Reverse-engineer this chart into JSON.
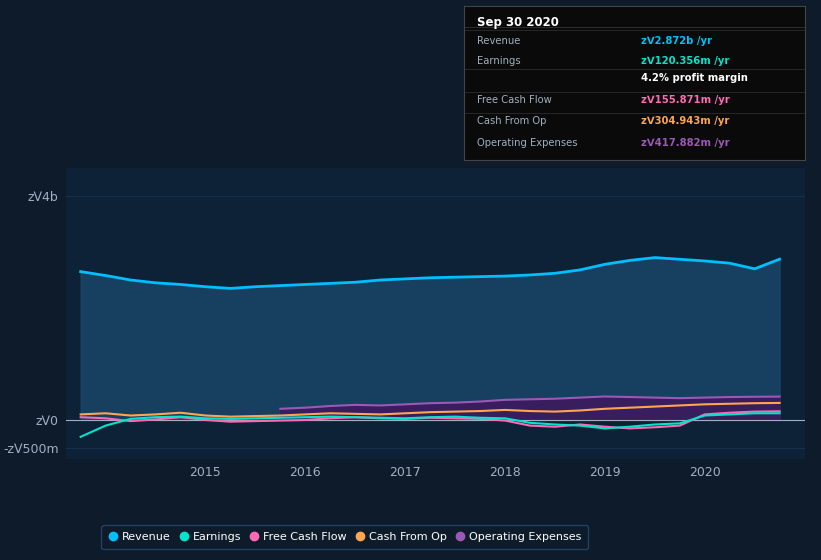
{
  "bg_color": "#0d1b2a",
  "plot_bg_color": "#0d2137",
  "grid_color": "#1e3a5f",
  "text_color": "#a0b0c0",
  "title_color": "#ffffff",
  "ylim": [
    -700000000,
    4500000000
  ],
  "yticks": [
    -500000000,
    0,
    4000000000
  ],
  "ytick_labels": [
    "-zᐯ500m",
    "zᐯ0",
    "zᐯ4b"
  ],
  "x_ticks": [
    2015,
    2016,
    2017,
    2018,
    2019,
    2020
  ],
  "series": {
    "Revenue": {
      "color": "#00bfff",
      "fill_color": "#1a4a6e"
    },
    "Earnings": {
      "color": "#00e5cc"
    },
    "Free Cash Flow": {
      "color": "#ff69b4"
    },
    "Cash From Op": {
      "color": "#ffa550"
    },
    "Operating Expenses": {
      "color": "#9b59b6",
      "fill_color": "#3d1a5e"
    }
  },
  "revenue_x": [
    2013.75,
    2014.0,
    2014.25,
    2014.5,
    2014.75,
    2015.0,
    2015.25,
    2015.5,
    2015.75,
    2016.0,
    2016.25,
    2016.5,
    2016.75,
    2017.0,
    2017.25,
    2017.5,
    2017.75,
    2018.0,
    2018.25,
    2018.5,
    2018.75,
    2019.0,
    2019.25,
    2019.5,
    2019.75,
    2020.0,
    2020.25,
    2020.5,
    2020.75
  ],
  "revenue_y": [
    2650000000,
    2580000000,
    2500000000,
    2450000000,
    2420000000,
    2380000000,
    2350000000,
    2380000000,
    2400000000,
    2420000000,
    2440000000,
    2460000000,
    2500000000,
    2520000000,
    2540000000,
    2550000000,
    2560000000,
    2570000000,
    2590000000,
    2620000000,
    2680000000,
    2780000000,
    2850000000,
    2900000000,
    2870000000,
    2840000000,
    2800000000,
    2700000000,
    2872000000
  ],
  "earnings_x": [
    2013.75,
    2014.0,
    2014.25,
    2014.5,
    2014.75,
    2015.0,
    2015.25,
    2015.5,
    2015.75,
    2016.0,
    2016.25,
    2016.5,
    2016.75,
    2017.0,
    2017.25,
    2017.5,
    2017.75,
    2018.0,
    2018.25,
    2018.5,
    2018.75,
    2019.0,
    2019.25,
    2019.5,
    2019.75,
    2020.0,
    2020.25,
    2020.5,
    2020.75
  ],
  "earnings_y": [
    -300000000,
    -100000000,
    20000000,
    50000000,
    60000000,
    30000000,
    20000000,
    30000000,
    40000000,
    50000000,
    60000000,
    50000000,
    40000000,
    30000000,
    50000000,
    60000000,
    40000000,
    30000000,
    -50000000,
    -80000000,
    -100000000,
    -150000000,
    -120000000,
    -80000000,
    -60000000,
    80000000,
    100000000,
    120000000,
    120356000
  ],
  "fcf_x": [
    2013.75,
    2014.0,
    2014.25,
    2014.5,
    2014.75,
    2015.0,
    2015.25,
    2015.5,
    2015.75,
    2016.0,
    2016.25,
    2016.5,
    2016.75,
    2017.0,
    2017.25,
    2017.5,
    2017.75,
    2018.0,
    2018.25,
    2018.5,
    2018.75,
    2019.0,
    2019.25,
    2019.5,
    2019.75,
    2020.0,
    2020.25,
    2020.5,
    2020.75
  ],
  "fcf_y": [
    50000000,
    30000000,
    -20000000,
    10000000,
    50000000,
    0,
    -30000000,
    -20000000,
    -10000000,
    0,
    30000000,
    50000000,
    30000000,
    20000000,
    40000000,
    30000000,
    20000000,
    -10000000,
    -100000000,
    -120000000,
    -80000000,
    -120000000,
    -150000000,
    -130000000,
    -100000000,
    100000000,
    130000000,
    150000000,
    155871000
  ],
  "cashfromop_x": [
    2013.75,
    2014.0,
    2014.25,
    2014.5,
    2014.75,
    2015.0,
    2015.25,
    2015.5,
    2015.75,
    2016.0,
    2016.25,
    2016.5,
    2016.75,
    2017.0,
    2017.25,
    2017.5,
    2017.75,
    2018.0,
    2018.25,
    2018.5,
    2018.75,
    2019.0,
    2019.25,
    2019.5,
    2019.75,
    2020.0,
    2020.25,
    2020.5,
    2020.75
  ],
  "cashfromop_y": [
    100000000,
    120000000,
    80000000,
    100000000,
    130000000,
    80000000,
    60000000,
    70000000,
    80000000,
    100000000,
    120000000,
    110000000,
    100000000,
    120000000,
    140000000,
    150000000,
    160000000,
    180000000,
    160000000,
    150000000,
    170000000,
    200000000,
    220000000,
    240000000,
    260000000,
    280000000,
    290000000,
    300000000,
    304943000
  ],
  "opex_x": [
    2015.75,
    2016.0,
    2016.25,
    2016.5,
    2016.75,
    2017.0,
    2017.25,
    2017.5,
    2017.75,
    2018.0,
    2018.25,
    2018.5,
    2018.75,
    2019.0,
    2019.25,
    2019.5,
    2019.75,
    2020.0,
    2020.25,
    2020.5,
    2020.75
  ],
  "opex_y": [
    200000000,
    220000000,
    250000000,
    270000000,
    260000000,
    280000000,
    300000000,
    310000000,
    330000000,
    360000000,
    370000000,
    380000000,
    400000000,
    420000000,
    410000000,
    400000000,
    390000000,
    400000000,
    410000000,
    415000000,
    417882000
  ],
  "tooltip_date": "Sep 30 2020",
  "tooltip_bg": "#0a0a0a",
  "tooltip_rows": [
    {
      "label": "Revenue",
      "value": "zᐯ2.872b /yr",
      "value_color": "#00bfff",
      "sep_after": true
    },
    {
      "label": "Earnings",
      "value": "zᐯ120.356m /yr",
      "value_color": "#00e5cc",
      "sep_after": false
    },
    {
      "label": "",
      "value": "4.2% profit margin",
      "value_color": "#ffffff",
      "sep_after": true
    },
    {
      "label": "Free Cash Flow",
      "value": "zᐯ155.871m /yr",
      "value_color": "#ff69b4",
      "sep_after": true
    },
    {
      "label": "Cash From Op",
      "value": "zᐯ304.943m /yr",
      "value_color": "#ffa550",
      "sep_after": true
    },
    {
      "label": "Operating Expenses",
      "value": "zᐯ417.882m /yr",
      "value_color": "#9b59b6",
      "sep_after": false
    }
  ],
  "legend": [
    {
      "label": "Revenue",
      "color": "#00bfff"
    },
    {
      "label": "Earnings",
      "color": "#00e5cc"
    },
    {
      "label": "Free Cash Flow",
      "color": "#ff69b4"
    },
    {
      "label": "Cash From Op",
      "color": "#ffa550"
    },
    {
      "label": "Operating Expenses",
      "color": "#9b59b6"
    }
  ]
}
